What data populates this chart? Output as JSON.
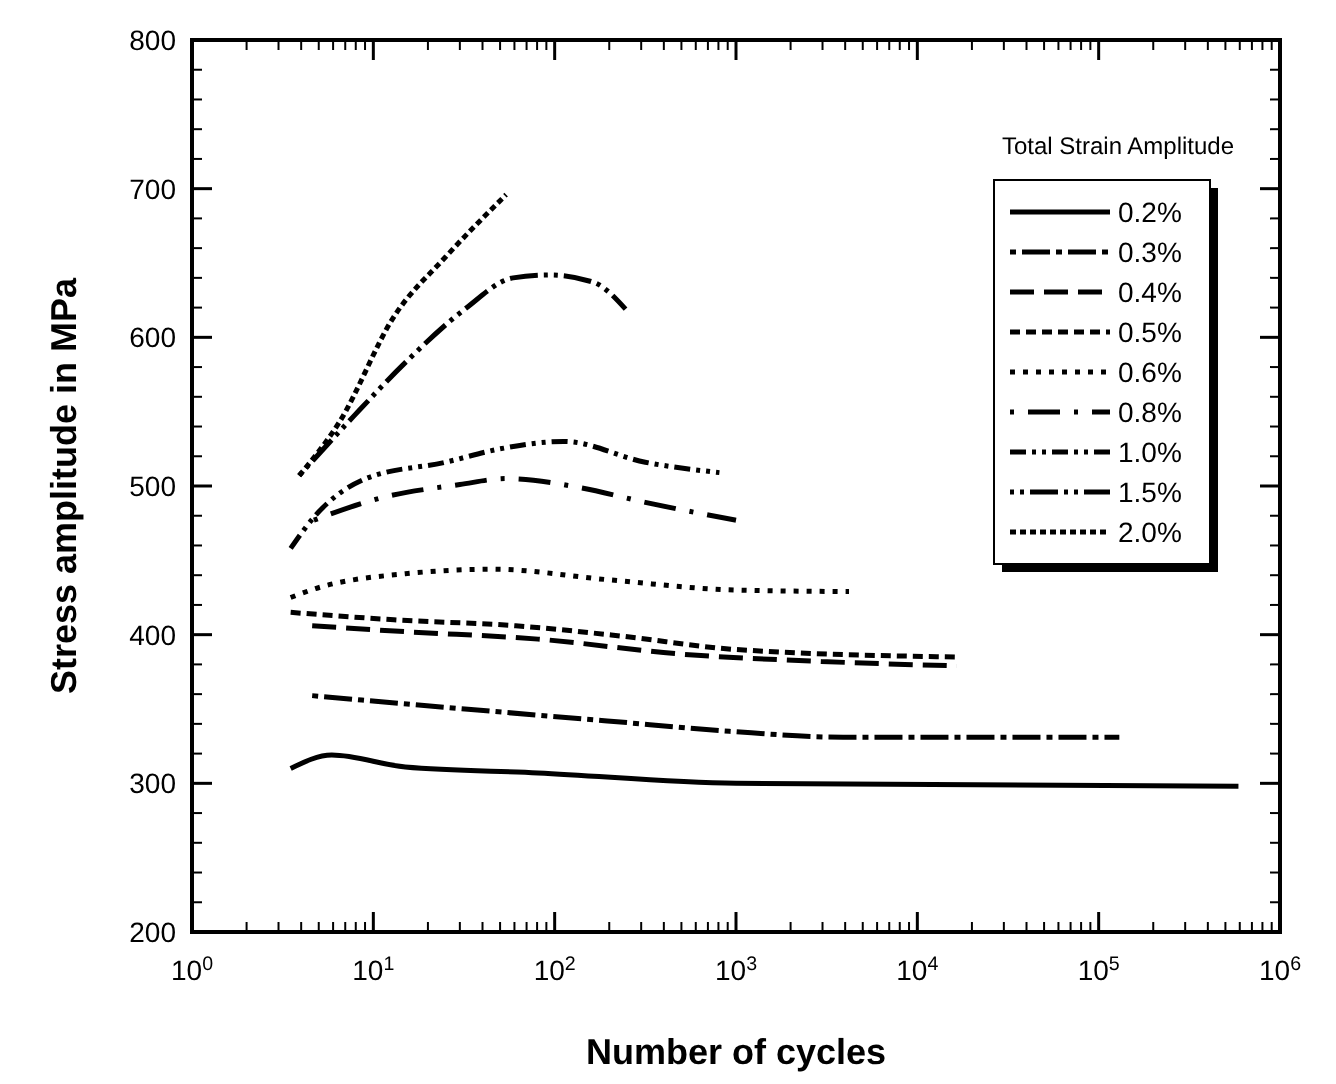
{
  "chart_data": {
    "type": "line",
    "xlabel": "Number of cycles",
    "ylabel": "Stress amplitude in MPa",
    "legend_title": "Total Strain Amplitude",
    "legend": "top right",
    "log": "x",
    "grid": false,
    "xlim": [
      1,
      1000000
    ],
    "xticks": [
      {
        "value": 1,
        "label": "10$^{0}$"
      },
      {
        "value": 10,
        "label": "10$^{1}$"
      },
      {
        "value": 100,
        "label": "10$^{2}$"
      },
      {
        "value": 1000,
        "label": "10$^{3}$"
      },
      {
        "value": 10000,
        "label": "10$^{4}$"
      },
      {
        "value": 100000,
        "label": "10$^{5}$"
      },
      {
        "value": 1000000,
        "label": "10$^{6}$"
      }
    ],
    "ylim": [
      200,
      800
    ],
    "yticks": [
      200,
      300,
      400,
      500,
      600,
      700,
      800
    ],
    "series": [
      {
        "name": "0.2%",
        "color": "#000000",
        "line_style": "solid",
        "x": [
          3.5,
          5.9,
          15,
          81,
          1000,
          590000
        ],
        "values": [
          310,
          319,
          311,
          307,
          300,
          298
        ]
      },
      {
        "name": "0.3%",
        "color": "#000000",
        "line_style": "dashed",
        "x": [
          4.6,
          32,
          195,
          920,
          3900,
          130000
        ],
        "values": [
          359,
          350,
          342,
          335,
          331,
          331
        ]
      },
      {
        "name": "0.4%",
        "color": "#000000",
        "line_style": "dashed",
        "x": [
          4.6,
          15,
          81,
          490,
          2950,
          16500
        ],
        "values": [
          406,
          402,
          397,
          387,
          382,
          379
        ]
      },
      {
        "name": "0.5%",
        "color": "#000000",
        "line_style": "dashed",
        "x": [
          3.5,
          13,
          61,
          235,
          1000,
          16500
        ],
        "values": [
          415,
          410,
          406,
          399,
          390,
          385
        ]
      },
      {
        "name": "0.6%",
        "color": "#000000",
        "line_style": "dotted",
        "x": [
          3.5,
          4.8,
          15,
          46,
          195,
          1000,
          4200
        ],
        "values": [
          425,
          431,
          441,
          444,
          437,
          430,
          429
        ]
      },
      {
        "name": "0.8%",
        "color": "#000000",
        "line_style": "dashed",
        "x": [
          4.7,
          11,
          30,
          54,
          137,
          316,
          1000
        ],
        "values": [
          477,
          492,
          501,
          505,
          499,
          489,
          477
        ]
      },
      {
        "name": "1.0%",
        "color": "#000000",
        "line_style": "dashed",
        "x": [
          3.5,
          4.7,
          9.1,
          25,
          50,
          112,
          316,
          810
        ],
        "values": [
          458,
          479,
          505,
          516,
          525,
          530,
          516,
          509
        ]
      },
      {
        "name": "1.5%",
        "color": "#000000",
        "line_style": "dashed",
        "x": [
          3.9,
          7.8,
          15,
          32,
          59,
          94,
          164,
          246
        ],
        "values": [
          507,
          547,
          583,
          619,
          640,
          642,
          637,
          619
        ]
      },
      {
        "name": "2.0%",
        "color": "#000000",
        "line_style": "dotted",
        "x": [
          3.9,
          6.5,
          13,
          25,
          54
        ],
        "values": [
          507,
          543,
          614,
          654,
          696
        ]
      }
    ]
  }
}
